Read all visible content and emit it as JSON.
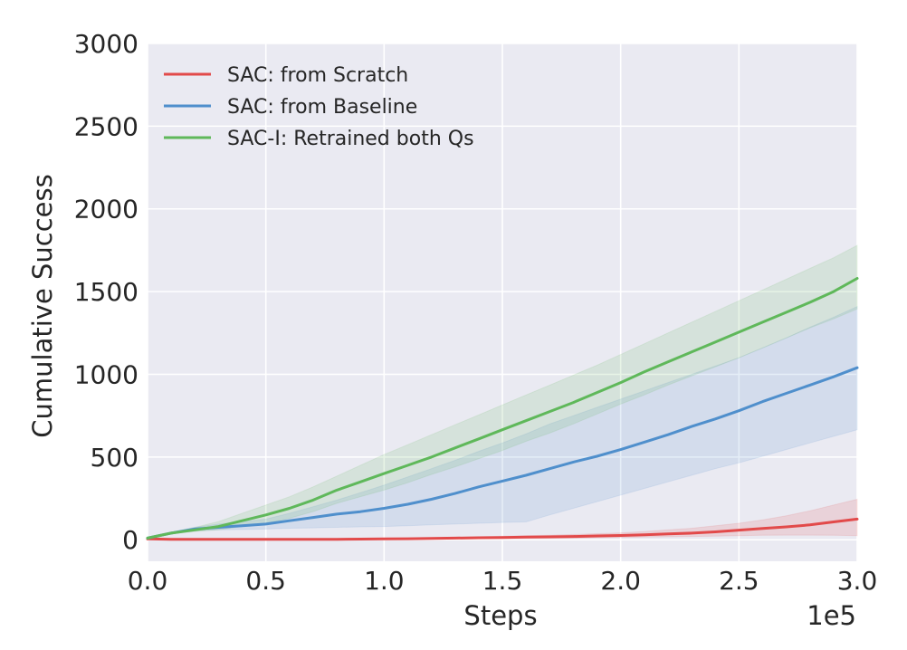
{
  "chart_data": {
    "type": "line",
    "title": "",
    "xlabel": "Steps",
    "ylabel": "Cumulative Success",
    "x_offset_text": "1e5",
    "xlim": [
      0.0,
      3.0
    ],
    "ylim": [
      -130,
      3000
    ],
    "xticks": [
      "0.0",
      "0.5",
      "1.0",
      "1.5",
      "2.0",
      "2.5",
      "3.0"
    ],
    "xtick_values": [
      0.0,
      0.5,
      1.0,
      1.5,
      2.0,
      2.5,
      3.0
    ],
    "yticks": [
      "0",
      "500",
      "1000",
      "1500",
      "2000",
      "2500",
      "3000"
    ],
    "ytick_values": [
      0,
      500,
      1000,
      1500,
      2000,
      2500,
      3000
    ],
    "grid": true,
    "legend_position": "upper-left",
    "x": [
      0.0,
      0.1,
      0.2,
      0.3,
      0.4,
      0.5,
      0.6,
      0.7,
      0.8,
      0.9,
      1.0,
      1.1,
      1.2,
      1.3,
      1.4,
      1.5,
      1.6,
      1.7,
      1.8,
      1.9,
      2.0,
      2.1,
      2.2,
      2.3,
      2.4,
      2.5,
      2.6,
      2.7,
      2.8,
      2.9,
      3.0
    ],
    "series": [
      {
        "name": "SAC: from Scratch",
        "color": "#e24a4a",
        "values": [
          5,
          3,
          3,
          3,
          3,
          3,
          3,
          3,
          3,
          4,
          5,
          6,
          8,
          10,
          12,
          14,
          16,
          18,
          20,
          23,
          26,
          30,
          35,
          40,
          48,
          58,
          68,
          78,
          90,
          108,
          125
        ],
        "lower": [
          5,
          2,
          2,
          2,
          2,
          2,
          2,
          2,
          2,
          2,
          3,
          3,
          4,
          5,
          6,
          7,
          8,
          9,
          10,
          12,
          14,
          16,
          18,
          20,
          22,
          25,
          27,
          28,
          28,
          27,
          25
        ],
        "upper": [
          5,
          4,
          4,
          4,
          4,
          4,
          4,
          4,
          5,
          6,
          8,
          10,
          12,
          15,
          18,
          22,
          25,
          28,
          32,
          37,
          42,
          50,
          60,
          70,
          85,
          100,
          120,
          145,
          175,
          210,
          245
        ]
      },
      {
        "name": "SAC: from Baseline",
        "color": "#4f8fcc",
        "values": [
          10,
          40,
          65,
          75,
          85,
          95,
          115,
          135,
          155,
          170,
          190,
          215,
          245,
          280,
          320,
          355,
          390,
          430,
          470,
          505,
          545,
          590,
          635,
          685,
          730,
          780,
          835,
          885,
          935,
          985,
          1040
        ],
        "lower": [
          10,
          35,
          55,
          60,
          62,
          65,
          70,
          72,
          75,
          78,
          80,
          85,
          90,
          95,
          100,
          105,
          108,
          150,
          190,
          230,
          270,
          310,
          350,
          390,
          430,
          465,
          505,
          545,
          585,
          625,
          665
        ],
        "upper": [
          10,
          45,
          75,
          95,
          110,
          125,
          160,
          200,
          240,
          285,
          330,
          380,
          430,
          480,
          535,
          585,
          640,
          700,
          750,
          800,
          850,
          900,
          950,
          1000,
          1050,
          1100,
          1160,
          1220,
          1285,
          1345,
          1410
        ]
      },
      {
        "name": "SAC-I: Retrained both Qs",
        "color": "#5fb85a",
        "values": [
          10,
          40,
          60,
          80,
          115,
          150,
          190,
          240,
          300,
          350,
          400,
          450,
          500,
          555,
          610,
          665,
          720,
          775,
          830,
          890,
          950,
          1015,
          1075,
          1135,
          1195,
          1255,
          1315,
          1375,
          1435,
          1500,
          1580
        ],
        "lower": [
          10,
          35,
          50,
          60,
          80,
          100,
          130,
          170,
          220,
          260,
          300,
          345,
          395,
          440,
          490,
          540,
          595,
          645,
          700,
          760,
          820,
          875,
          935,
          990,
          1045,
          1100,
          1160,
          1220,
          1280,
          1335,
          1395
        ],
        "upper": [
          10,
          45,
          75,
          110,
          160,
          210,
          260,
          320,
          385,
          450,
          515,
          575,
          635,
          695,
          755,
          815,
          875,
          935,
          995,
          1055,
          1120,
          1185,
          1250,
          1315,
          1380,
          1445,
          1510,
          1575,
          1640,
          1705,
          1780
        ]
      }
    ]
  }
}
